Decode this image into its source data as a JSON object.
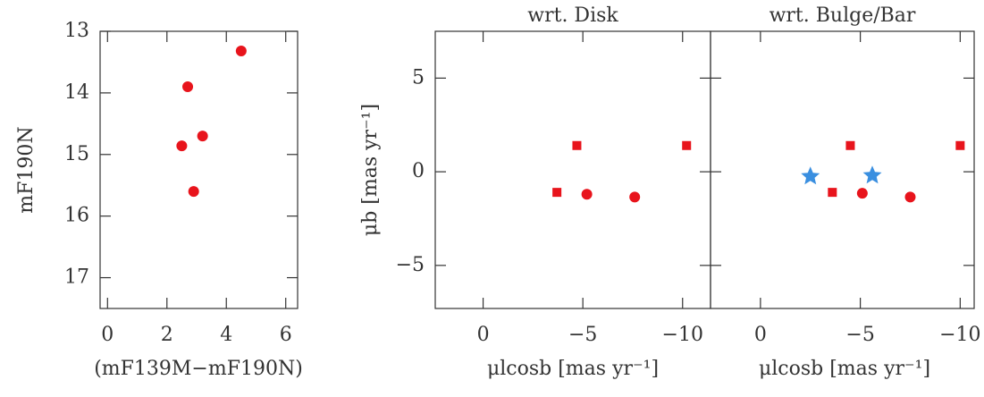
{
  "chart_data": [
    {
      "type": "scatter",
      "x_label": "(mF139M−mF190N)",
      "y_label": "mF190N",
      "xlim": [
        -0.25,
        6.4
      ],
      "ylim": [
        17.5,
        13
      ],
      "xticks": [
        0,
        2,
        4,
        6
      ],
      "yticks": [
        13,
        14,
        15,
        16,
        17
      ],
      "series": [
        {
          "color": "#e8141c",
          "marker": "circle",
          "x": [
            4.5,
            2.7,
            3.2,
            2.5,
            2.9
          ],
          "values": [
            13.32,
            13.9,
            14.7,
            14.86,
            15.6
          ]
        }
      ]
    },
    {
      "type": "scatter",
      "title": "wrt. Disk",
      "x_label": "μlcosb [mas yr⁻¹]",
      "y_label": "μb [mas yr⁻¹]",
      "xlim": [
        2.4,
        -11.4
      ],
      "ylim": [
        -7.3,
        7.5
      ],
      "xticks": [
        0,
        {
          "value": -5,
          "label": "−5"
        },
        {
          "value": -10,
          "label": "−10"
        }
      ],
      "yticks": [
        {
          "value": -5,
          "label": "−5"
        },
        0,
        5
      ],
      "series": [
        {
          "color": "#e8141c",
          "marker": "square",
          "x": [
            -3.7,
            -4.7,
            -10.2
          ],
          "values": [
            -1.1,
            1.4,
            1.4
          ]
        },
        {
          "color": "#e8141c",
          "marker": "circle",
          "x": [
            -5.2,
            -7.6
          ],
          "values": [
            -1.2,
            -1.35
          ]
        }
      ]
    },
    {
      "type": "scatter",
      "title": "wrt. Bulge/Bar",
      "x_label": "μlcosb [mas yr⁻¹]",
      "xlim": [
        2.5,
        -10.7
      ],
      "ylim": [
        -7.3,
        7.5
      ],
      "xticks": [
        0,
        {
          "value": -5,
          "label": "−5"
        },
        {
          "value": -10,
          "label": "−10"
        }
      ],
      "yticks": [
        -5,
        0,
        5
      ],
      "ytick_labels": false,
      "series": [
        {
          "color": "#e8141c",
          "marker": "square",
          "x": [
            -4.5,
            -3.6,
            -10.0
          ],
          "values": [
            1.4,
            -1.1,
            1.4
          ]
        },
        {
          "color": "#e8141c",
          "marker": "circle",
          "x": [
            -5.1,
            -7.5
          ],
          "values": [
            -1.15,
            -1.35
          ]
        },
        {
          "color": "#3a8fe0",
          "marker": "star",
          "x": [
            -2.5,
            -5.6
          ],
          "values": [
            -0.25,
            -0.2
          ]
        }
      ]
    }
  ]
}
